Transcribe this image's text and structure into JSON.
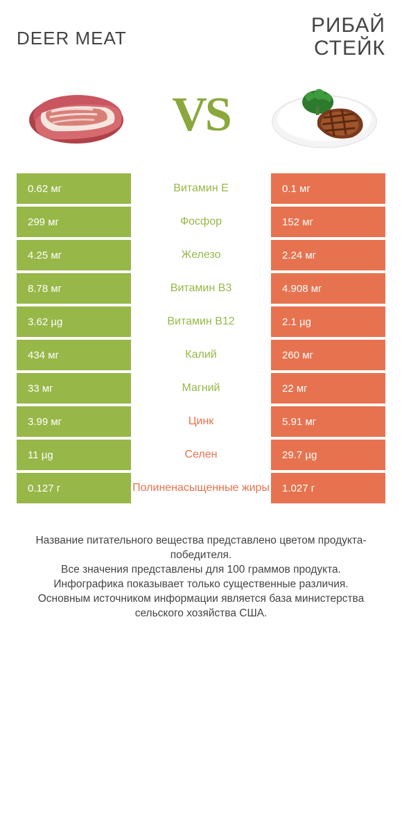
{
  "header": {
    "leftTitle": "DEER MEAT",
    "rightTitleLine1": "РИБАЙ",
    "rightTitleLine2": "СТЕЙК",
    "vs": "VS"
  },
  "colors": {
    "leftBg": "#97b748",
    "rightBg": "#e7724f",
    "leftText": "#97b748",
    "rightText": "#e7724f",
    "bodyText": "#444444",
    "rowGap": "#ffffff"
  },
  "rows": [
    {
      "left": "0.62 мг",
      "mid": "Витамин E",
      "right": "0.1 мг",
      "winner": "left"
    },
    {
      "left": "299 мг",
      "mid": "Фосфор",
      "right": "152 мг",
      "winner": "left"
    },
    {
      "left": "4.25 мг",
      "mid": "Железо",
      "right": "2.24 мг",
      "winner": "left"
    },
    {
      "left": "8.78 мг",
      "mid": "Витамин B3",
      "right": "4.908 мг",
      "winner": "left"
    },
    {
      "left": "3.62 µg",
      "mid": "Витамин B12",
      "right": "2.1 µg",
      "winner": "left"
    },
    {
      "left": "434 мг",
      "mid": "Калий",
      "right": "260 мг",
      "winner": "left"
    },
    {
      "left": "33 мг",
      "mid": "Магний",
      "right": "22 мг",
      "winner": "left"
    },
    {
      "left": "3.99 мг",
      "mid": "Цинк",
      "right": "5.91 мг",
      "winner": "right"
    },
    {
      "left": "11 µg",
      "mid": "Селен",
      "right": "29.7 µg",
      "winner": "right"
    },
    {
      "left": "0.127 г",
      "mid": "Полиненасыщенные жиры",
      "right": "1.027 г",
      "winner": "right"
    }
  ],
  "footer": {
    "line1": "Название питательного вещества представлено цветом продукта-победителя.",
    "line2": "Все значения представлены для 100 граммов продукта.",
    "line3": "Инфографика показывает только существенные различия.",
    "line4": "Основным источником информации является база министерства сельского хозяйства США."
  }
}
